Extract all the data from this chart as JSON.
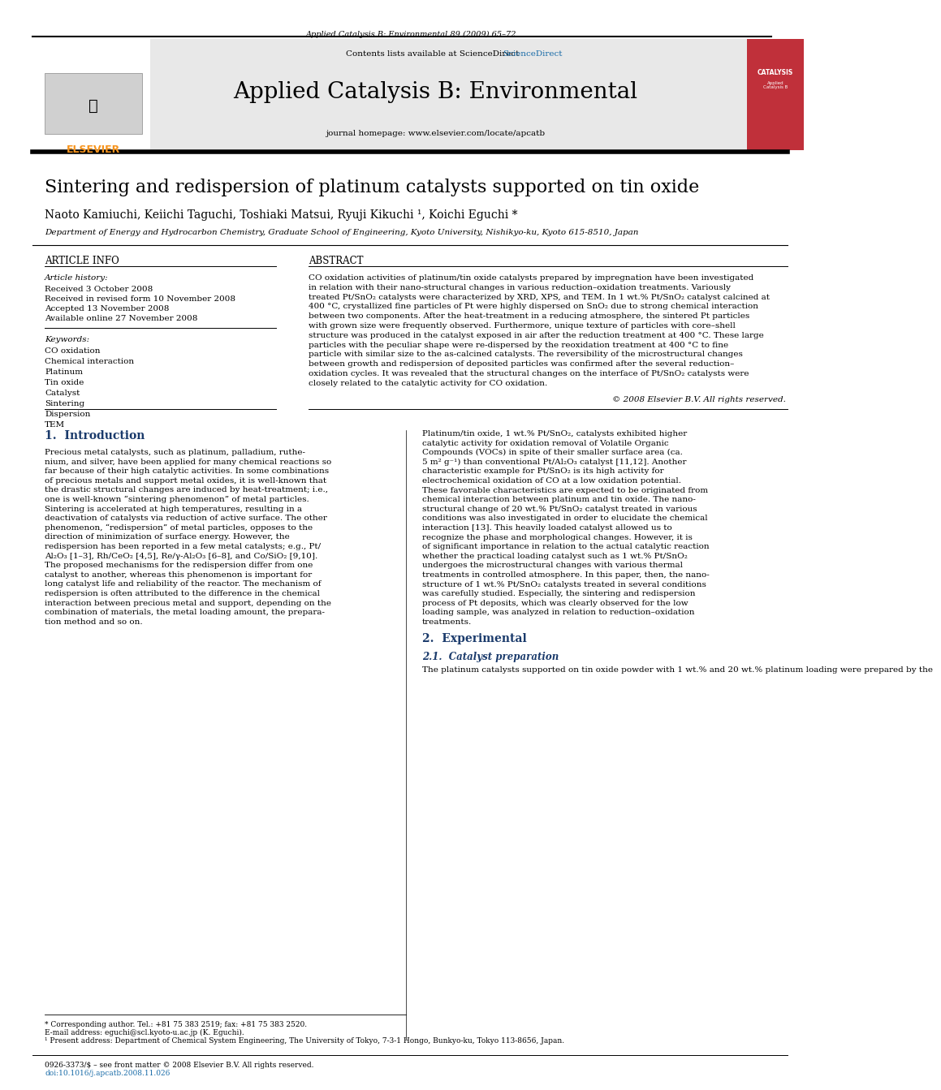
{
  "page_width": 9.92,
  "page_height": 13.23,
  "bg_color": "#ffffff",
  "header_journal": "Applied Catalysis B: Environmental 89 (2009) 65–72",
  "header_bg": "#e8e8e8",
  "journal_title": "Applied Catalysis B: Environmental",
  "contents_line": "Contents lists available at ScienceDirect",
  "sciencedirect_color": "#1a6ca8",
  "journal_homepage": "journal homepage: www.elsevier.com/locate/apcatb",
  "article_title": "Sintering and redispersion of platinum catalysts supported on tin oxide",
  "authors": "Naoto Kamiuchi, Keiichi Taguchi, Toshiaki Matsui, Ryuji Kikuchi ¹, Koichi Eguchi *",
  "affiliation": "Department of Energy and Hydrocarbon Chemistry, Graduate School of Engineering, Kyoto University, Nishikyo-ku, Kyoto 615-8510, Japan",
  "article_info_label": "ARTICLE INFO",
  "abstract_label": "ABSTRACT",
  "article_history_label": "Article history:",
  "received": "Received 3 October 2008",
  "received_revised": "Received in revised form 10 November 2008",
  "accepted": "Accepted 13 November 2008",
  "available": "Available online 27 November 2008",
  "keywords_label": "Keywords:",
  "keywords": [
    "CO oxidation",
    "Chemical interaction",
    "Platinum",
    "Tin oxide",
    "Catalyst",
    "Sintering",
    "Dispersion",
    "TEM"
  ],
  "abstract_text": "CO oxidation activities of platinum/tin oxide catalysts prepared by impregnation have been investigated in relation with their nano-structural changes in various reduction–oxidation treatments. Variously treated Pt/SnO₂ catalysts were characterized by XRD, XPS, and TEM. In 1 wt.% Pt/SnO₂ catalyst calcined at 400 °C, crystallized fine particles of Pt were highly dispersed on SnO₂ due to strong chemical interaction between two components. After the heat-treatment in a reducing atmosphere, the sintered Pt particles with grown size were frequently observed. Furthermore, unique texture of particles with core–shell structure was produced in the catalyst exposed in air after the reduction treatment at 400 °C. These large particles with the peculiar shape were re-dispersed by the reoxidation treatment at 400 °C to fine particle with similar size to the as-calcined catalysts. The reversibility of the microstructural changes between growth and redispersion of deposited particles was confirmed after the several reduction–oxidation cycles. It was revealed that the structural changes on the interface of Pt/SnO₂ catalysts were closely related to the catalytic activity for CO oxidation.",
  "copyright": "© 2008 Elsevier B.V. All rights reserved.",
  "intro_heading": "1.  Introduction",
  "intro_col1": "Precious metal catalysts, such as platinum, palladium, ruthenium, and silver, have been applied for many chemical reactions so far because of their high catalytic activities. In some combinations of precious metals and support metal oxides, it is well-known that the drastic structural changes are induced by heat-treatment; i.e., one is well-known “sintering phenomenon” of metal particles. Sintering is accelerated at high temperatures, resulting in a deactivation of catalysts via reduction of active surface. The other phenomenon, “redispersion” of metal particles, opposes to the direction of minimization of surface energy. However, the redispersion has been reported in a few metal catalysts; e.g., Pt/Al₂O₃ [1–3], Rh/CeO₂ [4,5], Re/γ-Al₂O₃ [6–8], and Co/SiO₂ [9,10]. The proposed mechanisms for the redispersion differ from one catalyst to another, whereas this phenomenon is important for long catalyst life and reliability of the reactor. The mechanism of redispersion is often attributed to the difference in the chemical interaction between precious metal and support, depending on the combination of materials, the metal loading amount, the preparation method and so on.",
  "intro_col2": "Platinum/tin oxide, 1 wt.% Pt/SnO₂, catalysts exhibited higher catalytic activity for oxidation removal of Volatile Organic Compounds (VOCs) in spite of their smaller surface area (ca. 5 m² g⁻¹) than conventional Pt/Al₂O₃ catalyst [11,12]. Another characteristic example for Pt/SnO₂ is its high activity for electrochemical oxidation of CO at a low oxidation potential. These favorable characteristics are expected to be originated from chemical interaction between platinum and tin oxide. The nanostructural change of 20 wt.% Pt/SnO₂ catalyst treated in various conditions was also investigated in order to elucidate the chemical interaction [13]. This heavily loaded catalyst allowed us to recognize the phase and morphological changes. However, it is of significant importance in relation to the actual catalytic reaction whether the practical loading catalyst such as 1 wt.% Pt/SnO₂ undergoes the microstructural changes with various thermal treatments in controlled atmosphere. In this paper, then, the nanostructure of 1 wt.% Pt/SnO₂ catalysts treated in several conditions was carefully studied. Especially, the sintering and redispersion process of Pt deposits, which was clearly observed for the low loading sample, was analyzed in relation to reduction–oxidation treatments.",
  "section2_heading": "2.  Experimental",
  "section21_heading": "2.1.  Catalyst preparation",
  "section21_text": "The platinum catalysts supported on tin oxide powder with 1 wt.% and 20 wt.% platinum loading were prepared by the",
  "footer_note1": "* Corresponding author. Tel.: +81 75 383 2519; fax: +81 75 383 2520.",
  "footer_note2": "E-mail address: eguchi@scl.kyoto-u.ac.jp (K. Eguchi).",
  "footer_note3": "¹ Present address: Department of Chemical System Engineering, The University of Tokyo, 7-3-1 Hongo, Bunkyo-ku, Tokyo 113-8656, Japan.",
  "footer_issn": "0926-3373/$ – see front matter © 2008 Elsevier B.V. All rights reserved.",
  "footer_doi": "doi:10.1016/j.apcatb.2008.11.026",
  "elsevier_orange": "#f7941d",
  "link_color": "#1a6ca8",
  "heading_color": "#1a3a6b"
}
